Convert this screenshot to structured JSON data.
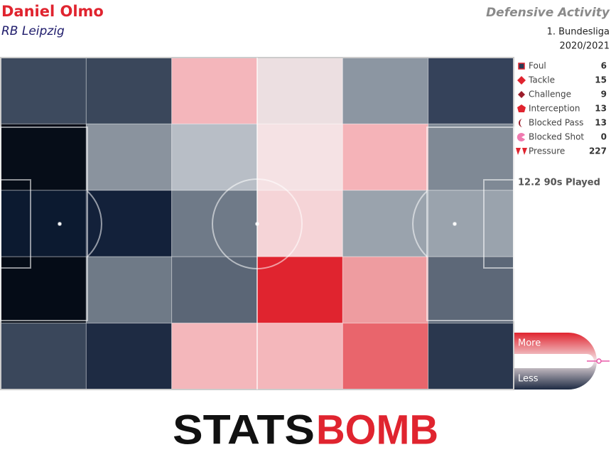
{
  "chart_data": {
    "type": "zone-heatmap",
    "title": "Daniel Olmo",
    "subtitle": "RB Leipzig",
    "chart_label": "Defensive Activity",
    "competition": "1. Bundesliga",
    "season": "2020/2021",
    "legend": [
      {
        "name": "Foul",
        "count": 6
      },
      {
        "name": "Tackle",
        "count": 15
      },
      {
        "name": "Challenge",
        "count": 9
      },
      {
        "name": "Interception",
        "count": 13
      },
      {
        "name": "Blocked Pass",
        "count": 13
      },
      {
        "name": "Blocked Shot",
        "count": 0
      },
      {
        "name": "Pressure",
        "count": 227
      }
    ],
    "minutes_label": "12.2 90s Played",
    "zone_colors": [
      [
        "#3d4a5e",
        "#3a475b",
        "#f4b6bb",
        "#ecdfe1",
        "#8c96a2",
        "#35425a"
      ],
      [
        "#060d18",
        "#8a939e",
        "#b8bec6",
        "#f5e2e4",
        "#f5b3b8",
        "#7f8995"
      ],
      [
        "#0c1a30",
        "#13213a",
        "#6f7a88",
        "#f5d4d7",
        "#9aa3ad",
        "#9aa3ad"
      ],
      [
        "#050c17",
        "#6f7a87",
        "#5b6676",
        "#e0242f",
        "#ee9ca0",
        "#5d6878"
      ],
      [
        "#3a475b",
        "#1e2b43",
        "#f4b7bb",
        "#f4b7bb",
        "#e9656c",
        "#2a374e"
      ]
    ],
    "scale_labels": [
      "More",
      "Less"
    ]
  },
  "logo": {
    "left": "STATS",
    "right": "BOMB"
  }
}
